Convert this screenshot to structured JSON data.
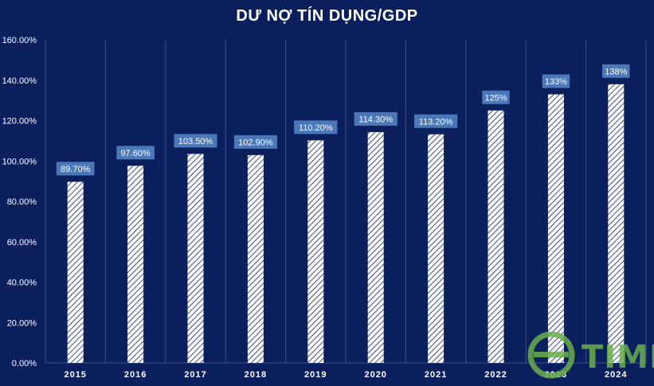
{
  "chart_data": {
    "type": "bar",
    "title": "DƯ NỢ TÍN DỤNG/GDP",
    "categories": [
      "2015",
      "2016",
      "2017",
      "2018",
      "2019",
      "2020",
      "2021",
      "2022",
      "2023",
      "2024"
    ],
    "values": [
      89.7,
      97.6,
      103.5,
      102.9,
      110.2,
      114.3,
      113.2,
      125,
      133,
      138
    ],
    "data_labels": [
      "89.70%",
      "97.60%",
      "103.50%",
      "102.90%",
      "110.20%",
      "114.30%",
      "113.20%",
      "125%",
      "133%",
      "138%"
    ],
    "y_ticks": [
      "0.00%",
      "20.00%",
      "40.00%",
      "60.00%",
      "80.00%",
      "100.00%",
      "120.00%",
      "140.00%",
      "160.00%"
    ],
    "ylim": [
      0,
      160
    ],
    "xlabel": "",
    "ylabel": "",
    "grid": "vertical category separators",
    "legend": "none",
    "colors": {
      "background": "#0b1f5c",
      "bar_fill": "#ffffff",
      "bar_hatch": "#0b1f5c",
      "label_box": "#4a78b8",
      "text": "#ffffff",
      "grid": "#3a4f8a"
    }
  },
  "watermark": {
    "text": "TIME"
  }
}
